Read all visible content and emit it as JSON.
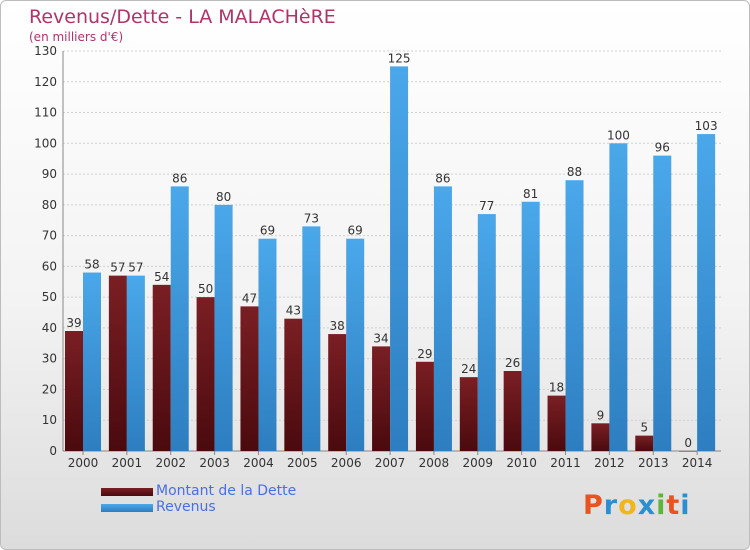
{
  "header": {
    "title": "Revenus/Dette - LA MALACHèRE",
    "subtitle": "(en milliers d'€)"
  },
  "legend": {
    "debt_label": "Montant de la Dette",
    "revenue_label": "Revenus"
  },
  "logo": {
    "text": "Proxiti",
    "colors": [
      "#e8531f",
      "#2a8fd1",
      "#f2b51c",
      "#2a8fd1",
      "#5db53a",
      "#e8531f",
      "#2a8fd1"
    ]
  },
  "colors": {
    "debt": "#7a1f24",
    "debt_dark": "#4a0a0e",
    "revenue": "#4aa8ea",
    "revenue_dark": "#2d7ec0",
    "grid": "#d0d0d0",
    "accent": "#b0336b"
  },
  "chart_data": {
    "type": "bar",
    "title": "Revenus/Dette - LA MALACHèRE",
    "subtitle": "(en milliers d'€)",
    "xlabel": "",
    "ylabel": "",
    "ylim": [
      0,
      130
    ],
    "yticks": [
      0,
      10,
      20,
      30,
      40,
      50,
      60,
      70,
      80,
      90,
      100,
      110,
      120,
      130
    ],
    "categories": [
      "2000",
      "2001",
      "2002",
      "2003",
      "2004",
      "2005",
      "2006",
      "2007",
      "2008",
      "2009",
      "2010",
      "2011",
      "2012",
      "2013",
      "2014"
    ],
    "series": [
      {
        "name": "Montant de la Dette",
        "values": [
          39,
          57,
          54,
          50,
          47,
          43,
          38,
          34,
          29,
          24,
          26,
          18,
          9,
          5,
          0
        ]
      },
      {
        "name": "Revenus",
        "values": [
          58,
          57,
          86,
          80,
          69,
          73,
          69,
          125,
          86,
          77,
          81,
          88,
          100,
          96,
          103
        ]
      }
    ],
    "grid": true,
    "legend_position": "bottom-left"
  }
}
